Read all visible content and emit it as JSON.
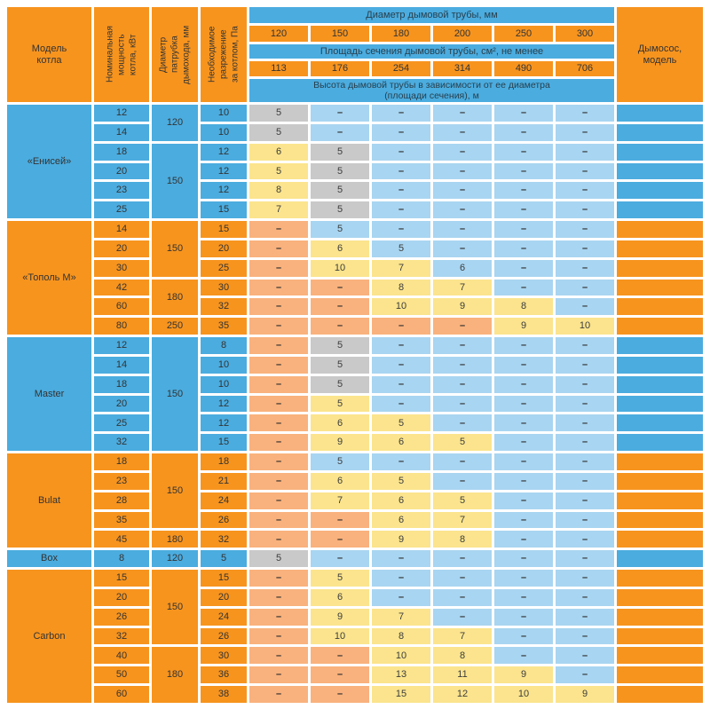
{
  "header": {
    "model_label": "Модель\nкотла",
    "power_label": "Номинальная\nмощность\nкотла, кВт",
    "nozzle_label": "Диаметр\nпатрубка\nдымохода, мм",
    "draft_label": "Необходимое\nразрежение\nза котлом, Па",
    "diameter_banner": "Диаметр дымовой трубы, мм",
    "diameters": [
      "120",
      "150",
      "180",
      "200",
      "250",
      "300"
    ],
    "area_banner": "Площадь сечения дымовой трубы, см², не менее",
    "areas": [
      "113",
      "176",
      "254",
      "314",
      "490",
      "706"
    ],
    "height_banner": "Высота дымовой трубы в зависимости от ее диаметра\n(площади сечения), м",
    "exhauster_label": "Дымосос,\nмодель"
  },
  "colors": {
    "orange": "#F7941E",
    "blue": "#4BACDF",
    "light_blue": "#A8D5F1",
    "gray": "#C9C9C9",
    "yellow": "#FBE48D",
    "salmon": "#F9B27D"
  },
  "legend_note": "cells: [height_value_m_or_dash, cell_color]",
  "sections": [
    {
      "model": "«Енисей»",
      "theme": "blue",
      "nozzle_groups": [
        {
          "value": "120",
          "span": 2
        },
        {
          "value": "150",
          "span": 4
        }
      ],
      "rows": [
        {
          "power": "12",
          "draft": "10",
          "cells": [
            [
              "5",
              "gray"
            ],
            [
              "–",
              "lb"
            ],
            [
              "–",
              "lb"
            ],
            [
              "–",
              "lb"
            ],
            [
              "–",
              "lb"
            ],
            [
              "–",
              "lb"
            ]
          ]
        },
        {
          "power": "14",
          "draft": "10",
          "cells": [
            [
              "5",
              "gray"
            ],
            [
              "–",
              "lb"
            ],
            [
              "–",
              "lb"
            ],
            [
              "–",
              "lb"
            ],
            [
              "–",
              "lb"
            ],
            [
              "–",
              "lb"
            ]
          ]
        },
        {
          "power": "18",
          "draft": "12",
          "cells": [
            [
              "6",
              "yellow"
            ],
            [
              "5",
              "gray"
            ],
            [
              "–",
              "lb"
            ],
            [
              "–",
              "lb"
            ],
            [
              "–",
              "lb"
            ],
            [
              "–",
              "lb"
            ]
          ]
        },
        {
          "power": "20",
          "draft": "12",
          "cells": [
            [
              "5",
              "yellow"
            ],
            [
              "5",
              "gray"
            ],
            [
              "–",
              "lb"
            ],
            [
              "–",
              "lb"
            ],
            [
              "–",
              "lb"
            ],
            [
              "–",
              "lb"
            ]
          ]
        },
        {
          "power": "23",
          "draft": "12",
          "cells": [
            [
              "8",
              "yellow"
            ],
            [
              "5",
              "gray"
            ],
            [
              "–",
              "lb"
            ],
            [
              "–",
              "lb"
            ],
            [
              "–",
              "lb"
            ],
            [
              "–",
              "lb"
            ]
          ]
        },
        {
          "power": "25",
          "draft": "15",
          "cells": [
            [
              "7",
              "yellow"
            ],
            [
              "5",
              "gray"
            ],
            [
              "–",
              "lb"
            ],
            [
              "–",
              "lb"
            ],
            [
              "–",
              "lb"
            ],
            [
              "–",
              "lb"
            ]
          ]
        }
      ]
    },
    {
      "model": "«Тополь М»",
      "theme": "orange",
      "nozzle_groups": [
        {
          "value": "150",
          "span": 3
        },
        {
          "value": "180",
          "span": 2
        },
        {
          "value": "250",
          "span": 1
        }
      ],
      "rows": [
        {
          "power": "14",
          "draft": "15",
          "cells": [
            [
              "–",
              "salmon"
            ],
            [
              "5",
              "lb"
            ],
            [
              "–",
              "lb"
            ],
            [
              "–",
              "lb"
            ],
            [
              "–",
              "lb"
            ],
            [
              "–",
              "lb"
            ]
          ]
        },
        {
          "power": "20",
          "draft": "20",
          "cells": [
            [
              "–",
              "salmon"
            ],
            [
              "6",
              "yellow"
            ],
            [
              "5",
              "lb"
            ],
            [
              "–",
              "lb"
            ],
            [
              "–",
              "lb"
            ],
            [
              "–",
              "lb"
            ]
          ]
        },
        {
          "power": "30",
          "draft": "25",
          "cells": [
            [
              "–",
              "salmon"
            ],
            [
              "10",
              "yellow"
            ],
            [
              "7",
              "yellow"
            ],
            [
              "6",
              "lb"
            ],
            [
              "–",
              "lb"
            ],
            [
              "–",
              "lb"
            ]
          ]
        },
        {
          "power": "42",
          "draft": "30",
          "cells": [
            [
              "–",
              "salmon"
            ],
            [
              "–",
              "salmon"
            ],
            [
              "8",
              "yellow"
            ],
            [
              "7",
              "yellow"
            ],
            [
              "–",
              "lb"
            ],
            [
              "–",
              "lb"
            ]
          ]
        },
        {
          "power": "60",
          "draft": "32",
          "cells": [
            [
              "–",
              "salmon"
            ],
            [
              "–",
              "salmon"
            ],
            [
              "10",
              "yellow"
            ],
            [
              "9",
              "yellow"
            ],
            [
              "8",
              "yellow"
            ],
            [
              "–",
              "lb"
            ]
          ]
        },
        {
          "power": "80",
          "draft": "35",
          "cells": [
            [
              "–",
              "salmon"
            ],
            [
              "–",
              "salmon"
            ],
            [
              "–",
              "salmon"
            ],
            [
              "–",
              "salmon"
            ],
            [
              "9",
              "yellow"
            ],
            [
              "10",
              "yellow"
            ]
          ]
        }
      ]
    },
    {
      "model": "Master",
      "theme": "blue",
      "nozzle_groups": [
        {
          "value": "150",
          "span": 6
        }
      ],
      "rows": [
        {
          "power": "12",
          "draft": "8",
          "cells": [
            [
              "–",
              "salmon"
            ],
            [
              "5",
              "gray"
            ],
            [
              "–",
              "lb"
            ],
            [
              "–",
              "lb"
            ],
            [
              "–",
              "lb"
            ],
            [
              "–",
              "lb"
            ]
          ]
        },
        {
          "power": "14",
          "draft": "10",
          "cells": [
            [
              "–",
              "salmon"
            ],
            [
              "5",
              "gray"
            ],
            [
              "–",
              "lb"
            ],
            [
              "–",
              "lb"
            ],
            [
              "–",
              "lb"
            ],
            [
              "–",
              "lb"
            ]
          ]
        },
        {
          "power": "18",
          "draft": "10",
          "cells": [
            [
              "–",
              "salmon"
            ],
            [
              "5",
              "gray"
            ],
            [
              "–",
              "lb"
            ],
            [
              "–",
              "lb"
            ],
            [
              "–",
              "lb"
            ],
            [
              "–",
              "lb"
            ]
          ]
        },
        {
          "power": "20",
          "draft": "12",
          "cells": [
            [
              "–",
              "salmon"
            ],
            [
              "5",
              "yellow"
            ],
            [
              "–",
              "lb"
            ],
            [
              "–",
              "lb"
            ],
            [
              "–",
              "lb"
            ],
            [
              "–",
              "lb"
            ]
          ]
        },
        {
          "power": "25",
          "draft": "12",
          "cells": [
            [
              "–",
              "salmon"
            ],
            [
              "6",
              "yellow"
            ],
            [
              "5",
              "yellow"
            ],
            [
              "–",
              "lb"
            ],
            [
              "–",
              "lb"
            ],
            [
              "–",
              "lb"
            ]
          ]
        },
        {
          "power": "32",
          "draft": "15",
          "cells": [
            [
              "–",
              "salmon"
            ],
            [
              "9",
              "yellow"
            ],
            [
              "6",
              "yellow"
            ],
            [
              "5",
              "yellow"
            ],
            [
              "–",
              "lb"
            ],
            [
              "–",
              "lb"
            ]
          ]
        }
      ]
    },
    {
      "model": "Bulat",
      "theme": "orange",
      "nozzle_groups": [
        {
          "value": "150",
          "span": 4
        },
        {
          "value": "180",
          "span": 1
        }
      ],
      "rows": [
        {
          "power": "18",
          "draft": "18",
          "cells": [
            [
              "–",
              "salmon"
            ],
            [
              "5",
              "lb"
            ],
            [
              "–",
              "lb"
            ],
            [
              "–",
              "lb"
            ],
            [
              "–",
              "lb"
            ],
            [
              "–",
              "lb"
            ]
          ]
        },
        {
          "power": "23",
          "draft": "21",
          "cells": [
            [
              "–",
              "salmon"
            ],
            [
              "6",
              "yellow"
            ],
            [
              "5",
              "yellow"
            ],
            [
              "–",
              "lb"
            ],
            [
              "–",
              "lb"
            ],
            [
              "–",
              "lb"
            ]
          ]
        },
        {
          "power": "28",
          "draft": "24",
          "cells": [
            [
              "–",
              "salmon"
            ],
            [
              "7",
              "yellow"
            ],
            [
              "6",
              "yellow"
            ],
            [
              "5",
              "yellow"
            ],
            [
              "–",
              "lb"
            ],
            [
              "–",
              "lb"
            ]
          ]
        },
        {
          "power": "35",
          "draft": "26",
          "cells": [
            [
              "–",
              "salmon"
            ],
            [
              "–",
              "salmon"
            ],
            [
              "6",
              "yellow"
            ],
            [
              "7",
              "yellow"
            ],
            [
              "–",
              "lb"
            ],
            [
              "–",
              "lb"
            ]
          ]
        },
        {
          "power": "45",
          "draft": "32",
          "cells": [
            [
              "–",
              "salmon"
            ],
            [
              "–",
              "salmon"
            ],
            [
              "9",
              "yellow"
            ],
            [
              "8",
              "yellow"
            ],
            [
              "–",
              "lb"
            ],
            [
              "–",
              "lb"
            ]
          ]
        }
      ]
    },
    {
      "model": "Box",
      "theme": "blue",
      "nozzle_groups": [
        {
          "value": "120",
          "span": 1
        }
      ],
      "rows": [
        {
          "power": "8",
          "draft": "5",
          "cells": [
            [
              "5",
              "gray"
            ],
            [
              "–",
              "lb"
            ],
            [
              "–",
              "lb"
            ],
            [
              "–",
              "lb"
            ],
            [
              "–",
              "lb"
            ],
            [
              "–",
              "lb"
            ]
          ]
        }
      ]
    },
    {
      "model": "Carbon",
      "theme": "orange",
      "nozzle_groups": [
        {
          "value": "150",
          "span": 4
        },
        {
          "value": "180",
          "span": 3
        }
      ],
      "rows": [
        {
          "power": "15",
          "draft": "15",
          "cells": [
            [
              "–",
              "salmon"
            ],
            [
              "5",
              "yellow"
            ],
            [
              "–",
              "lb"
            ],
            [
              "–",
              "lb"
            ],
            [
              "–",
              "lb"
            ],
            [
              "–",
              "lb"
            ]
          ]
        },
        {
          "power": "20",
          "draft": "20",
          "cells": [
            [
              "–",
              "salmon"
            ],
            [
              "6",
              "yellow"
            ],
            [
              "–",
              "lb"
            ],
            [
              "–",
              "lb"
            ],
            [
              "–",
              "lb"
            ],
            [
              "–",
              "lb"
            ]
          ]
        },
        {
          "power": "26",
          "draft": "24",
          "cells": [
            [
              "–",
              "salmon"
            ],
            [
              "9",
              "yellow"
            ],
            [
              "7",
              "yellow"
            ],
            [
              "–",
              "lb"
            ],
            [
              "–",
              "lb"
            ],
            [
              "–",
              "lb"
            ]
          ]
        },
        {
          "power": "32",
          "draft": "26",
          "cells": [
            [
              "–",
              "salmon"
            ],
            [
              "10",
              "yellow"
            ],
            [
              "8",
              "yellow"
            ],
            [
              "7",
              "yellow"
            ],
            [
              "–",
              "lb"
            ],
            [
              "–",
              "lb"
            ]
          ]
        },
        {
          "power": "40",
          "draft": "30",
          "cells": [
            [
              "–",
              "salmon"
            ],
            [
              "–",
              "salmon"
            ],
            [
              "10",
              "yellow"
            ],
            [
              "8",
              "yellow"
            ],
            [
              "–",
              "lb"
            ],
            [
              "–",
              "lb"
            ]
          ]
        },
        {
          "power": "50",
          "draft": "36",
          "cells": [
            [
              "–",
              "salmon"
            ],
            [
              "–",
              "salmon"
            ],
            [
              "13",
              "yellow"
            ],
            [
              "11",
              "yellow"
            ],
            [
              "9",
              "yellow"
            ],
            [
              "–",
              "lb"
            ]
          ]
        },
        {
          "power": "60",
          "draft": "38",
          "cells": [
            [
              "–",
              "salmon"
            ],
            [
              "–",
              "salmon"
            ],
            [
              "15",
              "yellow"
            ],
            [
              "12",
              "yellow"
            ],
            [
              "10",
              "yellow"
            ],
            [
              "9",
              "yellow"
            ]
          ]
        }
      ]
    }
  ]
}
